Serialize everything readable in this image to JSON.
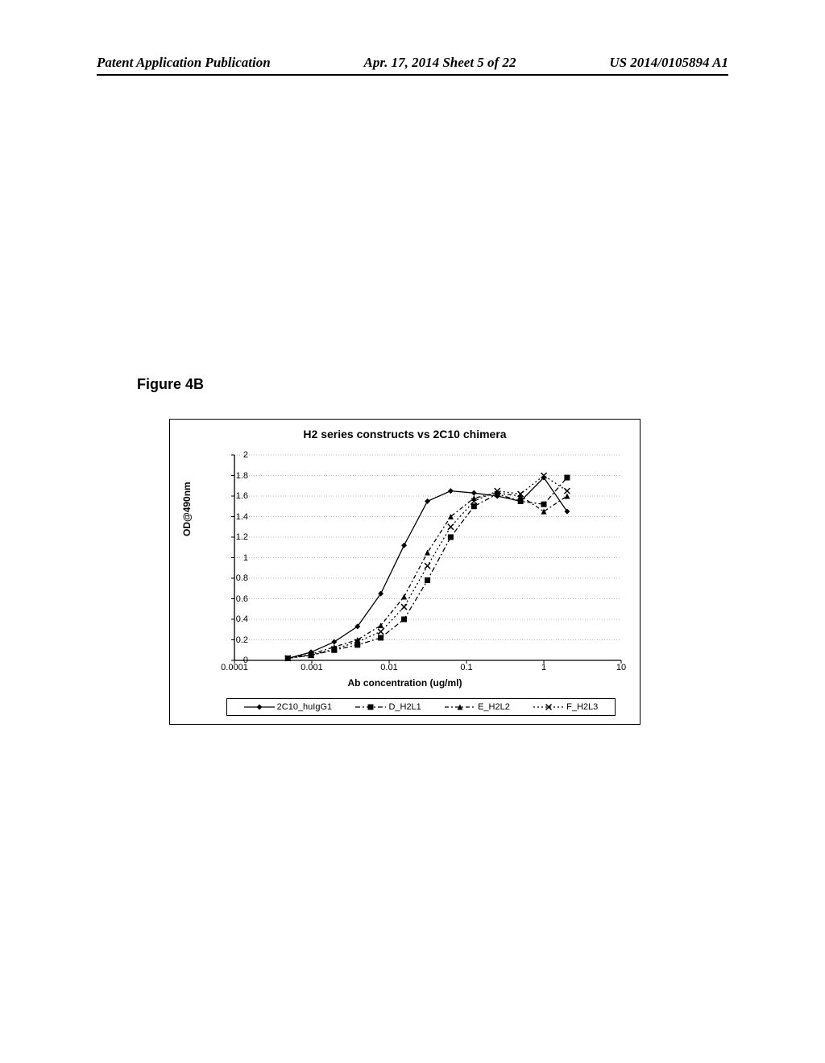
{
  "header": {
    "left": "Patent Application Publication",
    "center": "Apr. 17, 2014  Sheet 5 of 22",
    "right": "US 2014/0105894 A1"
  },
  "figure_label": "Figure 4B",
  "chart": {
    "type": "line",
    "title": "H2 series constructs vs 2C10 chimera",
    "xlabel": "Ab concentration (ug/ml)",
    "ylabel": "OD@490nm",
    "xscale": "log",
    "xlim": [
      0.0001,
      10
    ],
    "xticks": [
      0.0001,
      0.001,
      0.01,
      0.1,
      1,
      10
    ],
    "xtick_labels": [
      "0.0001",
      "0.001",
      "0.01",
      "0.1",
      "1",
      "10"
    ],
    "ylim": [
      0,
      2
    ],
    "yticks": [
      0,
      0.2,
      0.4,
      0.6,
      0.8,
      1,
      1.2,
      1.4,
      1.6,
      1.8,
      2
    ],
    "ytick_labels": [
      "0",
      "0.2",
      "0.4",
      "0.6",
      "0.8",
      "1",
      "1.2",
      "1.4",
      "1.6",
      "1.8",
      "2"
    ],
    "background_color": "#ffffff",
    "grid_color": "#bfbfbf",
    "axis_color": "#000000",
    "label_fontsize": 12,
    "tick_fontsize": 11,
    "title_fontsize": 14,
    "series": [
      {
        "name": "2C10_huIgG1",
        "color": "#000000",
        "dash": "solid",
        "marker": "diamond",
        "x": [
          0.00049,
          0.00098,
          0.00195,
          0.0039,
          0.0078,
          0.0156,
          0.0313,
          0.0625,
          0.125,
          0.25,
          0.5,
          1,
          2
        ],
        "y": [
          0.02,
          0.08,
          0.18,
          0.33,
          0.65,
          1.12,
          1.55,
          1.65,
          1.63,
          1.6,
          1.55,
          1.78,
          1.45
        ]
      },
      {
        "name": "D_H2L1",
        "color": "#000000",
        "dash": "dashdot",
        "marker": "square",
        "x": [
          0.00049,
          0.00098,
          0.00195,
          0.0039,
          0.0078,
          0.0156,
          0.0313,
          0.0625,
          0.125,
          0.25,
          0.5,
          1,
          2
        ],
        "y": [
          0.02,
          0.05,
          0.1,
          0.15,
          0.22,
          0.4,
          0.78,
          1.2,
          1.5,
          1.62,
          1.55,
          1.52,
          1.78
        ]
      },
      {
        "name": "E_H2L2",
        "color": "#000000",
        "dash": "dashdotb",
        "marker": "triangle",
        "x": [
          0.00049,
          0.00098,
          0.00195,
          0.0039,
          0.0078,
          0.0156,
          0.0313,
          0.0625,
          0.125,
          0.25,
          0.5,
          1,
          2
        ],
        "y": [
          0.02,
          0.06,
          0.13,
          0.2,
          0.34,
          0.62,
          1.05,
          1.4,
          1.58,
          1.63,
          1.6,
          1.45,
          1.6
        ]
      },
      {
        "name": "F_H2L3",
        "color": "#000000",
        "dash": "dotted",
        "marker": "x",
        "x": [
          0.00049,
          0.00098,
          0.00195,
          0.0039,
          0.0078,
          0.0156,
          0.0313,
          0.0625,
          0.125,
          0.25,
          0.5,
          1,
          2
        ],
        "y": [
          0.02,
          0.05,
          0.11,
          0.18,
          0.28,
          0.52,
          0.92,
          1.3,
          1.55,
          1.65,
          1.62,
          1.8,
          1.65
        ]
      }
    ]
  }
}
